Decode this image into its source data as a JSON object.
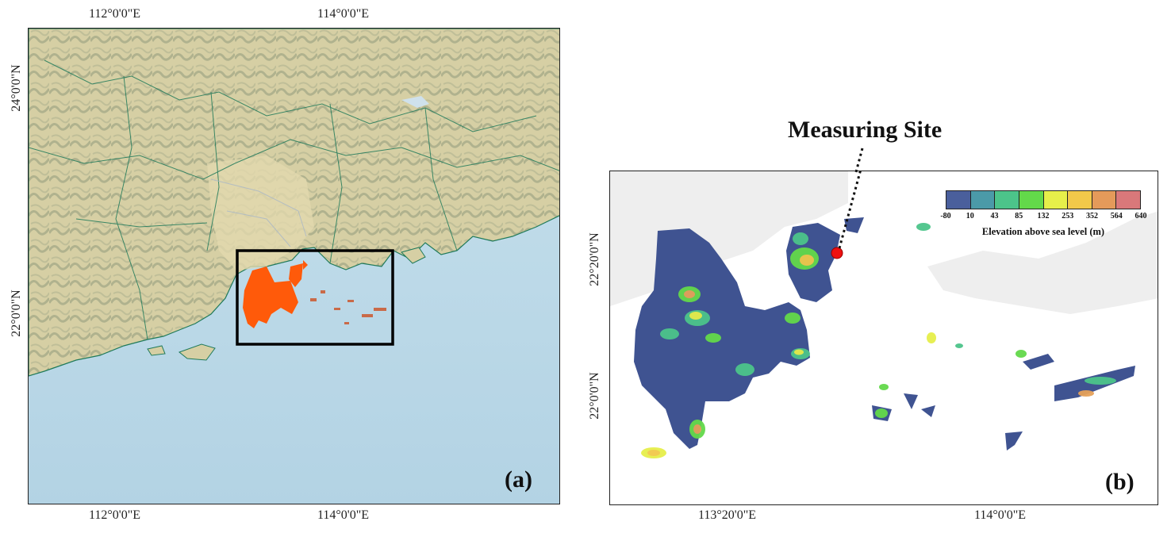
{
  "panel_a": {
    "label": "(a)",
    "top_ticks": [
      "112°0'0\"E",
      "114°0'0\"E"
    ],
    "bottom_ticks": [
      "112°0'0\"E",
      "114°0'0\"E"
    ],
    "left_ticks": [
      "24°0'0\"N",
      "22°0'0\"N"
    ],
    "colors": {
      "land": "#d9cfa6",
      "sea": "#bcd9e8",
      "boundary": "#1f7a5a",
      "study_area": "#ff5a0a",
      "box": "#000000"
    }
  },
  "panel_b": {
    "label": "(b)",
    "bottom_ticks": [
      "113°20'0\"E",
      "114°0'0\"E"
    ],
    "left_ticks": [
      "22°20'0\"N",
      "22°0'0\"N"
    ],
    "site_label": "Measuring Site",
    "legend": {
      "title": "Elevation above sea level (m)",
      "ticks": [
        "-80",
        "10",
        "43",
        "85",
        "132",
        "253",
        "352",
        "564",
        "640"
      ],
      "colors": [
        "#4a5f9c",
        "#4b9aa8",
        "#4cc48a",
        "#63d94a",
        "#e6ef4a",
        "#f2c94a",
        "#e49a5a",
        "#d9787a"
      ]
    },
    "colors": {
      "low_land": "#3f5391",
      "site_marker": "#ee1111"
    }
  }
}
